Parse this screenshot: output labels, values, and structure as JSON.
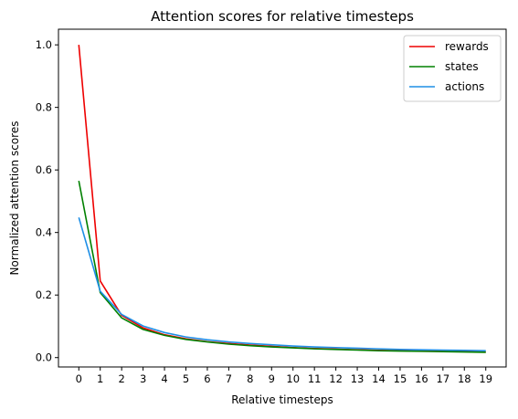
{
  "chart_data": {
    "type": "line",
    "title": "Attention scores for relative timesteps",
    "xlabel": "Relative timesteps",
    "ylabel": "Normalized attention scores",
    "x": [
      0,
      1,
      2,
      3,
      4,
      5,
      6,
      7,
      8,
      9,
      10,
      11,
      12,
      13,
      14,
      15,
      16,
      17,
      18,
      19
    ],
    "xlim": [
      -0.95,
      19.95
    ],
    "ylim": [
      -0.03,
      1.05
    ],
    "yticks": [
      0.0,
      0.2,
      0.4,
      0.6,
      0.8,
      1.0
    ],
    "ytick_labels": [
      "0.0",
      "0.2",
      "0.4",
      "0.6",
      "0.8",
      "1.0"
    ],
    "xtick_labels": [
      "0",
      "1",
      "2",
      "3",
      "4",
      "5",
      "6",
      "7",
      "8",
      "9",
      "10",
      "11",
      "12",
      "13",
      "14",
      "15",
      "16",
      "17",
      "18",
      "19"
    ],
    "grid": false,
    "legend_position": "top-right",
    "series": [
      {
        "name": "rewards",
        "color": "#ee0000",
        "values": [
          1.0,
          0.245,
          0.135,
          0.095,
          0.073,
          0.06,
          0.051,
          0.045,
          0.04,
          0.036,
          0.032,
          0.029,
          0.027,
          0.025,
          0.023,
          0.022,
          0.021,
          0.02,
          0.019,
          0.018
        ]
      },
      {
        "name": "states",
        "color": "#008000",
        "values": [
          0.565,
          0.208,
          0.127,
          0.09,
          0.071,
          0.058,
          0.05,
          0.043,
          0.038,
          0.034,
          0.031,
          0.028,
          0.026,
          0.024,
          0.022,
          0.021,
          0.02,
          0.019,
          0.018,
          0.017
        ]
      },
      {
        "name": "actions",
        "color": "#1e8fe6",
        "values": [
          0.448,
          0.212,
          0.138,
          0.101,
          0.08,
          0.066,
          0.057,
          0.05,
          0.045,
          0.041,
          0.037,
          0.034,
          0.032,
          0.03,
          0.028,
          0.026,
          0.025,
          0.024,
          0.023,
          0.022
        ]
      }
    ]
  }
}
